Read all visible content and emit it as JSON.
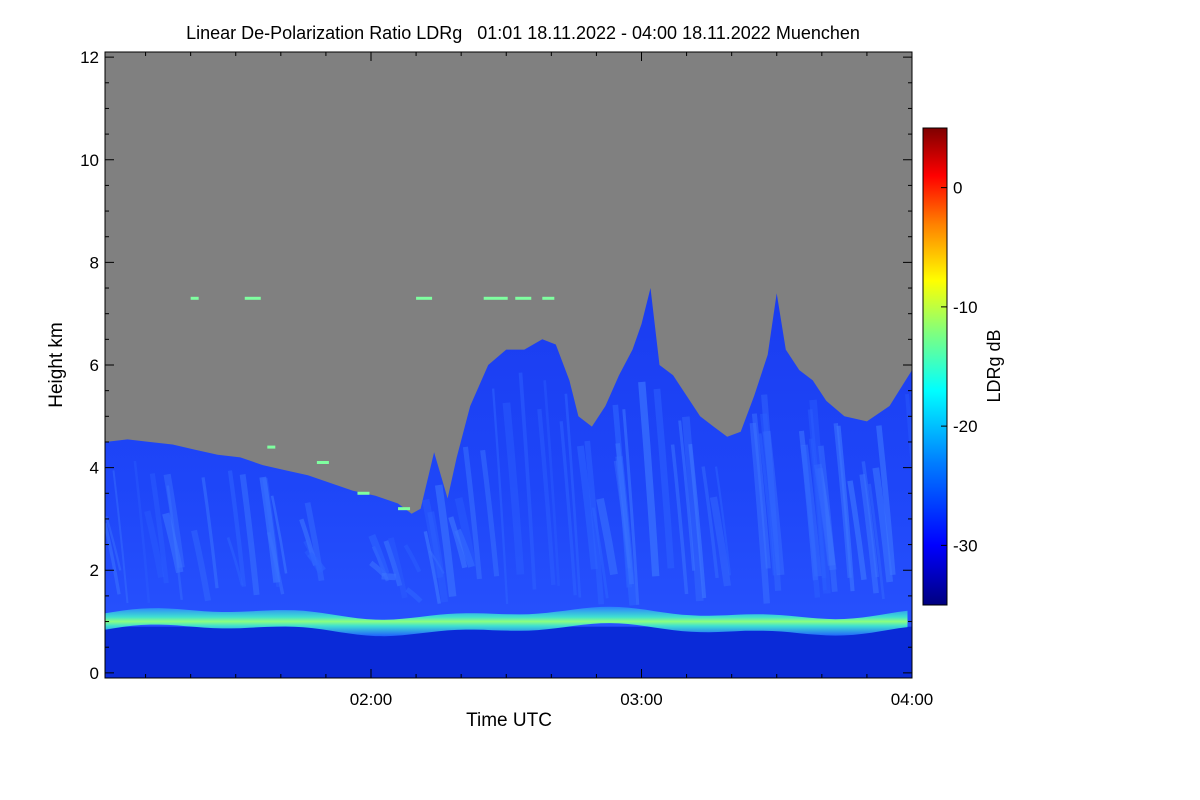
{
  "chart_data": {
    "type": "heatmap",
    "title": "Linear De-Polarization Ratio LDRg   01:01 18.11.2022 - 04:00 18.11.2022 Muenchen",
    "xlabel": "Time UTC",
    "ylabel": "Height km",
    "x_range_minutes": [
      61,
      240
    ],
    "x_ticks": [
      {
        "minute": 120,
        "label": "02:00"
      },
      {
        "minute": 180,
        "label": "03:00"
      },
      {
        "minute": 240,
        "label": "04:00"
      }
    ],
    "y_range_km": [
      -0.1,
      12.1
    ],
    "y_ticks": [
      0,
      2,
      4,
      6,
      8,
      10,
      12
    ],
    "colorbar": {
      "label": "LDRg dB",
      "range": [
        -35,
        5
      ],
      "ticks": [
        0,
        -10,
        -20,
        -30
      ],
      "colormap": [
        "#00007f",
        "#0000ff",
        "#007fff",
        "#00ffff",
        "#7fff7f",
        "#ffff00",
        "#ff7f00",
        "#ff0000",
        "#7f0000"
      ]
    },
    "no_data_color": "#808080",
    "features": {
      "boundary_layer_band": {
        "height_km": 1.0,
        "ldr_db": -18
      },
      "cloud_field_ldr_db": -30,
      "cloud_top_profile_km": [
        [
          61,
          4.5
        ],
        [
          66,
          4.55
        ],
        [
          71,
          4.5
        ],
        [
          76,
          4.45
        ],
        [
          81,
          4.35
        ],
        [
          86,
          4.25
        ],
        [
          91,
          4.2
        ],
        [
          96,
          4.05
        ],
        [
          101,
          3.95
        ],
        [
          106,
          3.85
        ],
        [
          111,
          3.7
        ],
        [
          116,
          3.55
        ],
        [
          121,
          3.45
        ],
        [
          126,
          3.3
        ],
        [
          129,
          3.1
        ],
        [
          131,
          3.2
        ],
        [
          134,
          4.3
        ],
        [
          137,
          3.4
        ],
        [
          139,
          4.2
        ],
        [
          142,
          5.2
        ],
        [
          146,
          6.0
        ],
        [
          150,
          6.3
        ],
        [
          154,
          6.3
        ],
        [
          158,
          6.5
        ],
        [
          161,
          6.4
        ],
        [
          164,
          5.7
        ],
        [
          166,
          5.0
        ],
        [
          169,
          4.8
        ],
        [
          172,
          5.2
        ],
        [
          175,
          5.8
        ],
        [
          178,
          6.3
        ],
        [
          180,
          6.8
        ],
        [
          182,
          7.5
        ],
        [
          184,
          6.0
        ],
        [
          187,
          5.8
        ],
        [
          190,
          5.4
        ],
        [
          193,
          5.0
        ],
        [
          196,
          4.8
        ],
        [
          199,
          4.6
        ],
        [
          202,
          4.7
        ],
        [
          205,
          5.4
        ],
        [
          208,
          6.2
        ],
        [
          210,
          7.4
        ],
        [
          212,
          6.3
        ],
        [
          215,
          5.9
        ],
        [
          218,
          5.7
        ],
        [
          221,
          5.3
        ],
        [
          225,
          5.0
        ],
        [
          230,
          4.9
        ],
        [
          235,
          5.2
        ],
        [
          240,
          5.9
        ]
      ]
    }
  }
}
